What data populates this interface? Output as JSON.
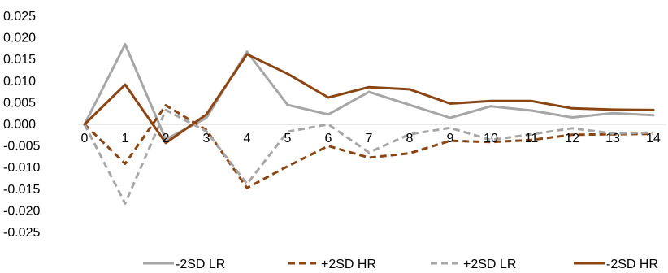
{
  "chart_data": {
    "type": "line",
    "title": "",
    "xlabel": "",
    "ylabel": "",
    "x": [
      0,
      1,
      2,
      3,
      4,
      5,
      6,
      7,
      8,
      9,
      10,
      11,
      12,
      13,
      14
    ],
    "ylim": [
      -0.025,
      0.025
    ],
    "yticks": [
      0.025,
      0.02,
      0.015,
      0.01,
      0.005,
      0.0,
      -0.005,
      -0.01,
      -0.015,
      -0.02,
      -0.025
    ],
    "ytick_labels": [
      "0.025",
      "0.020",
      "0.015",
      "0.010",
      "0.005",
      "0.000",
      "-0.005",
      "-0.010",
      "-0.015",
      "-0.020",
      "-0.025"
    ],
    "xtick_labels": [
      "0",
      "1",
      "2",
      "3",
      "4",
      "5",
      "6",
      "7",
      "8",
      "9",
      "10",
      "11",
      "12",
      "13",
      "14"
    ],
    "grid": false,
    "legend_position": "bottom",
    "series": [
      {
        "name": "-2SD LR",
        "color": "#a6a6a6",
        "dash": "solid",
        "values": [
          0.0,
          0.0185,
          -0.0035,
          0.0015,
          0.0168,
          0.0045,
          0.0023,
          0.0075,
          0.0045,
          0.0015,
          0.0042,
          0.0032,
          0.0016,
          0.0026,
          0.0021
        ]
      },
      {
        "name": "+2SD HR",
        "color": "#8b4513",
        "dash": "dashed",
        "values": [
          0.0,
          -0.0091,
          0.0044,
          -0.0013,
          -0.0147,
          -0.0097,
          -0.005,
          -0.0077,
          -0.0067,
          -0.0038,
          -0.0041,
          -0.0036,
          -0.0024,
          -0.0023,
          -0.0022
        ]
      },
      {
        "name": "+2SD LR",
        "color": "#a6a6a6",
        "dash": "dashed",
        "values": [
          0.0,
          -0.0183,
          0.0033,
          -0.0016,
          -0.0138,
          -0.0017,
          0.0,
          -0.0065,
          -0.0023,
          -0.0008,
          -0.0036,
          -0.0023,
          -0.0009,
          -0.0021,
          -0.0019
        ]
      },
      {
        "name": "-2SD HR",
        "color": "#8b4513",
        "dash": "solid",
        "values": [
          0.0,
          0.0092,
          -0.0043,
          0.0023,
          0.0162,
          0.0117,
          0.0062,
          0.0086,
          0.0081,
          0.0048,
          0.0054,
          0.0054,
          0.0037,
          0.0034,
          0.0033
        ]
      }
    ],
    "colors": {
      "axis": "#d9d9d9",
      "text": "#000000"
    }
  }
}
